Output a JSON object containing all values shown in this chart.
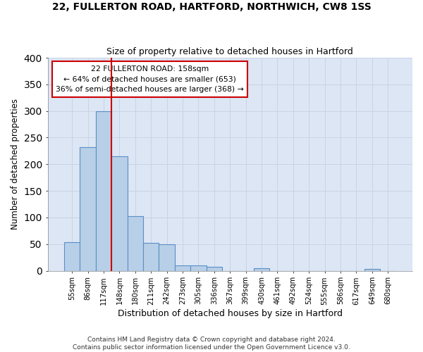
{
  "title1": "22, FULLERTON ROAD, HARTFORD, NORTHWICH, CW8 1SS",
  "title2": "Size of property relative to detached houses in Hartford",
  "xlabel": "Distribution of detached houses by size in Hartford",
  "ylabel": "Number of detached properties",
  "categories": [
    "55sqm",
    "86sqm",
    "117sqm",
    "148sqm",
    "180sqm",
    "211sqm",
    "242sqm",
    "273sqm",
    "305sqm",
    "336sqm",
    "367sqm",
    "399sqm",
    "430sqm",
    "461sqm",
    "492sqm",
    "524sqm",
    "555sqm",
    "586sqm",
    "617sqm",
    "649sqm",
    "680sqm"
  ],
  "values": [
    53,
    232,
    300,
    215,
    103,
    52,
    49,
    10,
    10,
    7,
    0,
    0,
    5,
    0,
    0,
    0,
    0,
    0,
    0,
    4,
    0
  ],
  "bar_color": "#b8cfe8",
  "bar_edge_color": "#5b8ec4",
  "grid_color": "#c8d4e4",
  "background_color": "#dce6f5",
  "vline_color": "#cc0000",
  "annotation_text": "22 FULLERTON ROAD: 158sqm\n← 64% of detached houses are smaller (653)\n36% of semi-detached houses are larger (368) →",
  "annotation_box_color": "#ffffff",
  "annotation_box_edge": "#cc0000",
  "footnote": "Contains HM Land Registry data © Crown copyright and database right 2024.\nContains public sector information licensed under the Open Government Licence v3.0.",
  "ylim": [
    0,
    400
  ],
  "yticks": [
    0,
    50,
    100,
    150,
    200,
    250,
    300,
    350,
    400
  ]
}
